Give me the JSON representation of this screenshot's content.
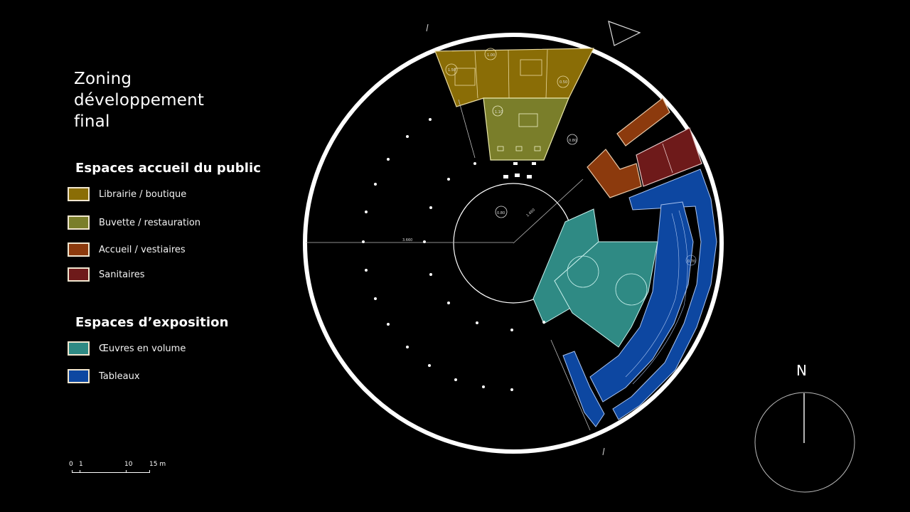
{
  "title": {
    "line1": "Zoning",
    "line2": "développement",
    "line3": "final"
  },
  "legend": {
    "section1": "Espaces accueil du public",
    "section2": "Espaces d’exposition",
    "items": [
      {
        "label": "Librairie / boutique",
        "color": "#8a6d06"
      },
      {
        "label": "Buvette / restauration",
        "color": "#7a7e2a"
      },
      {
        "label": "Accueil / vestiaires",
        "color": "#8c3a0d"
      },
      {
        "label": "Sanitaires",
        "color": "#6e1a1a"
      },
      {
        "label": "Œuvres en volume",
        "color": "#2f8a84"
      },
      {
        "label": "Tableaux",
        "color": "#0d47a1"
      }
    ]
  },
  "scale_bar": {
    "t0": "0",
    "t1": "1",
    "t10": "10",
    "t15": "15 m"
  },
  "compass": {
    "label": "N"
  },
  "plan_annotations": {
    "center_level": "0.80",
    "radius_dim": "1.660",
    "diameter_dim": "3.660",
    "cafe_level": "1.10",
    "shop_level_a": "1.00",
    "shop_level_b": "1.50",
    "shop_level_c": "0.50",
    "entry_level": "0.80",
    "paint_level": "0.70"
  }
}
